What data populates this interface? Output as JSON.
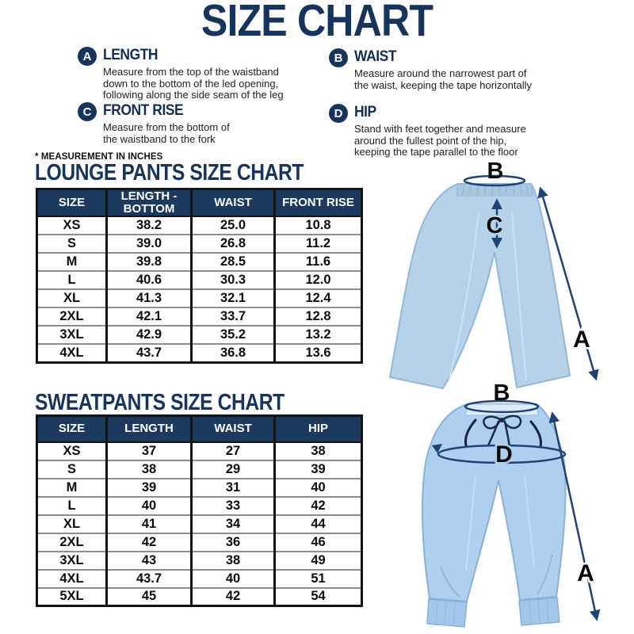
{
  "title": "SIZE CHART",
  "note": "* MEASUREMENT IN INCHES",
  "legend": [
    {
      "letter": "A",
      "title": "LENGTH",
      "desc": "Measure from the top of the waistband\ndown to the bottom of the led opening,\nfollowing along the side seam of the leg"
    },
    {
      "letter": "B",
      "title": "WAIST",
      "desc": "Measure around the narrowest part of\nthe waist, keeping the tape horizontally"
    },
    {
      "letter": "C",
      "title": "FRONT RISE",
      "desc": "Measure from the bottom of\nthe waistband to the fork"
    },
    {
      "letter": "D",
      "title": "HIP",
      "desc": "Stand with feet together and measure\naround the fullest point of the hip,\nkeeping the tape parallel to the floor"
    }
  ],
  "lounge_table": {
    "title": "LOUNGE PANTS SIZE CHART",
    "headers": [
      "SIZE",
      "LENGTH -\nBOTTOM",
      "WAIST",
      "FRONT RISE"
    ],
    "rows": [
      [
        "XS",
        "38.2",
        "25.0",
        "10.8"
      ],
      [
        "S",
        "39.0",
        "26.8",
        "11.2"
      ],
      [
        "M",
        "39.8",
        "28.5",
        "11.6"
      ],
      [
        "L",
        "40.6",
        "30.3",
        "12.0"
      ],
      [
        "XL",
        "41.3",
        "32.1",
        "12.4"
      ],
      [
        "2XL",
        "42.1",
        "33.7",
        "12.8"
      ],
      [
        "3XL",
        "42.9",
        "35.2",
        "13.2"
      ],
      [
        "4XL",
        "43.7",
        "36.8",
        "13.6"
      ]
    ]
  },
  "sweatpants_table": {
    "title": "SWEATPANTS SIZE CHART",
    "headers": [
      "SIZE",
      "LENGTH",
      "WAIST",
      "HIP"
    ],
    "rows": [
      [
        "XS",
        "37",
        "27",
        "38"
      ],
      [
        "S",
        "38",
        "29",
        "39"
      ],
      [
        "M",
        "39",
        "31",
        "40"
      ],
      [
        "L",
        "40",
        "33",
        "42"
      ],
      [
        "XL",
        "41",
        "34",
        "44"
      ],
      [
        "2XL",
        "42",
        "36",
        "46"
      ],
      [
        "3XL",
        "43",
        "38",
        "49"
      ],
      [
        "4XL",
        "43.7",
        "40",
        "51"
      ],
      [
        "5XL",
        "45",
        "42",
        "54"
      ]
    ]
  },
  "diagrams": {
    "lounge_pants": {
      "waist_label": "B",
      "front_rise_label": "C",
      "length_label": "A"
    },
    "sweatpants": {
      "waist_label": "B",
      "hip_label": "D",
      "length_label": "A"
    }
  },
  "colors": {
    "navy": "#17355c",
    "table_header_bg": "#1b3a5e",
    "pants_blue_lounge": "#b6d2e9",
    "pants_blue_sweat": "#aecfee",
    "arrow_navy": "#1f4374"
  }
}
